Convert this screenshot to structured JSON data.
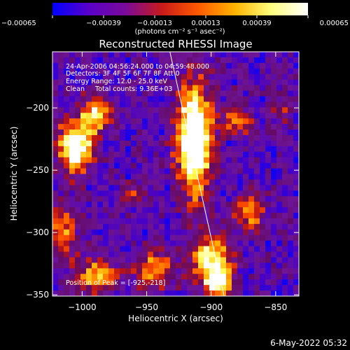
{
  "chart_data": {
    "type": "heatmap",
    "title": "Reconstructed RHESSI Image",
    "xlabel": "Heliocentric X (arcsec)",
    "ylabel": "Heliocentric Y (arcsec)",
    "xlim": [
      -1023,
      -832
    ],
    "ylim": [
      -351,
      -155
    ],
    "x_ticks": [
      -1000,
      -950,
      -900,
      -850
    ],
    "x_tick_labels": [
      "−1000",
      "−950",
      "−900",
      "−850"
    ],
    "y_ticks": [
      -200,
      -250,
      -300,
      -350
    ],
    "y_tick_labels": [
      "−200",
      "−250",
      "−300",
      "−350"
    ],
    "colorbar": {
      "ticks": [
        -0.00065,
        -0.00039,
        -0.00013,
        0.00013,
        0.00039,
        0.00065
      ],
      "tick_labels": [
        "−0.00065",
        "−0.00039",
        "−0.00013",
        "0.00013",
        "0.00039",
        "0.00065"
      ],
      "label": "(photons cm⁻² s⁻¹ asec⁻²)",
      "colors": [
        "#0000ff",
        "#5a00c8",
        "#7a0a9a",
        "#c81a1a",
        "#ff5a00",
        "#ffb400",
        "#ffff80",
        "#ffffff"
      ]
    },
    "limb_line": [
      [
        -932,
        -155
      ],
      [
        -890,
        -351
      ]
    ],
    "peak": [
      -925,
      -218
    ],
    "bright_regions": [
      {
        "x": -1005,
        "y": -230,
        "sx": 9,
        "sy": 14,
        "amp": 1.0
      },
      {
        "x": -990,
        "y": -205,
        "sx": 7,
        "sy": 10,
        "amp": 0.7
      },
      {
        "x": -913,
        "y": -225,
        "sx": 9,
        "sy": 30,
        "amp": 1.15
      },
      {
        "x": -900,
        "y": -320,
        "sx": 11,
        "sy": 12,
        "amp": 0.75
      },
      {
        "x": -895,
        "y": -340,
        "sx": 7,
        "sy": 8,
        "amp": 0.85
      },
      {
        "x": -945,
        "y": -330,
        "sx": 10,
        "sy": 10,
        "amp": 0.55
      },
      {
        "x": -990,
        "y": -335,
        "sx": 12,
        "sy": 10,
        "amp": 0.55
      },
      {
        "x": -1015,
        "y": -300,
        "sx": 8,
        "sy": 14,
        "amp": 0.5
      },
      {
        "x": -870,
        "y": -285,
        "sx": 8,
        "sy": 10,
        "amp": 0.45
      },
      {
        "x": -880,
        "y": -210,
        "sx": 8,
        "sy": 8,
        "amp": 0.45
      },
      {
        "x": -845,
        "y": -200,
        "sx": 6,
        "sy": 8,
        "amp": 0.35
      },
      {
        "x": -960,
        "y": -270,
        "sx": 6,
        "sy": 6,
        "amp": 0.35
      }
    ]
  },
  "annotations": {
    "line1": "24-Apr-2006 04:56:24.000 to 04:59:48.000",
    "line2": "Detectors: 3F 4F 5F 6F 7F 8F Att 0",
    "line3": "Energy Range: 12.0 - 25.0 keV",
    "line4": "Clean     Total counts: 9.36E+03",
    "peak_label": "Position of Peak = [-925,-218]"
  },
  "timestamp": "6-May-2022 05:32"
}
